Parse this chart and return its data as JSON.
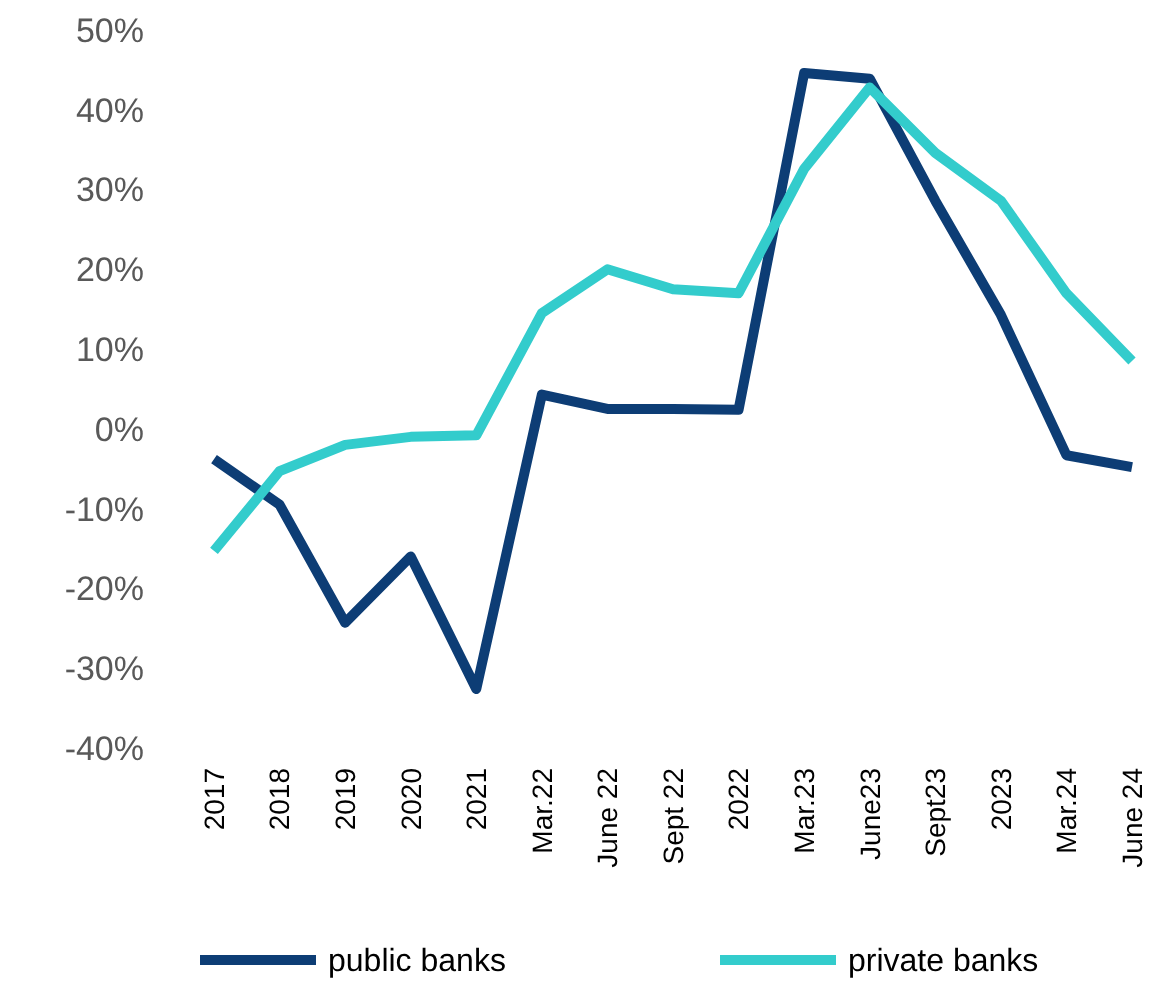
{
  "chart_data": {
    "type": "line",
    "categories": [
      "2017",
      "2018",
      "2019",
      "2020",
      "2021",
      "Mar.22",
      "June 22",
      "Sept 22",
      "2022",
      "Mar.23",
      "June23",
      "Sept23",
      "2023",
      "Mar.24",
      "June 24"
    ],
    "series": [
      {
        "name": "public banks",
        "color": "#0d3d75",
        "values": [
          -3.8,
          -9.5,
          -24.3,
          -16,
          -32.6,
          4.3,
          2.5,
          2.5,
          2.4,
          44.6,
          43.9,
          28.6,
          14.3,
          -3.3,
          -4.8
        ]
      },
      {
        "name": "private banks",
        "color": "#33cccc",
        "values": [
          -15.3,
          -5.3,
          -2,
          -1,
          -0.8,
          14.5,
          20,
          17.5,
          17,
          32.6,
          42.8,
          34.6,
          28.6,
          17,
          8.5
        ]
      }
    ],
    "ylim": [
      -40,
      50
    ],
    "yticks": [
      {
        "value": -40,
        "label": "-40%"
      },
      {
        "value": -30,
        "label": "-30%"
      },
      {
        "value": -20,
        "label": "-20%"
      },
      {
        "value": -10,
        "label": "-10%"
      },
      {
        "value": 0,
        "label": "0%"
      },
      {
        "value": 10,
        "label": "10%"
      },
      {
        "value": 20,
        "label": "20%"
      },
      {
        "value": 30,
        "label": "30%"
      },
      {
        "value": 40,
        "label": "40%"
      },
      {
        "value": 50,
        "label": "50%"
      }
    ],
    "grid": false,
    "legend": "bottom",
    "marker": "none",
    "line_style": "solid"
  }
}
